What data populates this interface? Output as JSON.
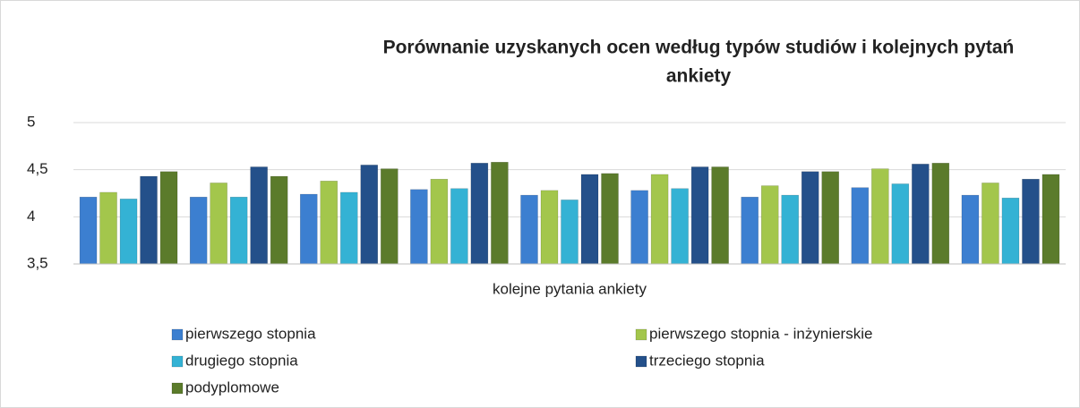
{
  "chart_data": {
    "type": "bar",
    "title": [
      "Porównanie uzyskanych ocen według typów studiów i kolejnych pytań",
      "ankiety"
    ],
    "x_label": "kolejne pytania ankiety",
    "categories": [
      null,
      null,
      null,
      null,
      null,
      null,
      null,
      null,
      null
    ],
    "series": [
      {
        "name": "pierwszego stopnia",
        "color": "#3c7fd0",
        "values": [
          4.21,
          4.21,
          4.24,
          4.29,
          4.23,
          4.28,
          4.21,
          4.31,
          4.23
        ]
      },
      {
        "name": "pierwszego stopnia - inżynierskie",
        "color": "#a3c64c",
        "values": [
          4.26,
          4.36,
          4.38,
          4.4,
          4.28,
          4.45,
          4.33,
          4.51,
          4.36
        ]
      },
      {
        "name": "drugiego stopnia",
        "color": "#34b2d4",
        "values": [
          4.19,
          4.21,
          4.26,
          4.3,
          4.18,
          4.3,
          4.23,
          4.35,
          4.2
        ]
      },
      {
        "name": "trzeciego stopnia",
        "color": "#24508a",
        "values": [
          4.43,
          4.53,
          4.55,
          4.57,
          4.45,
          4.53,
          4.48,
          4.56,
          4.4
        ]
      },
      {
        "name": "podyplomowe",
        "color": "#5b7b2b",
        "values": [
          4.48,
          4.43,
          4.51,
          4.58,
          4.46,
          4.53,
          4.48,
          4.57,
          4.45
        ]
      }
    ],
    "ylim": [
      3.5,
      5
    ],
    "yticks": [
      {
        "value": 3.5,
        "label": "3,5"
      },
      4,
      {
        "value": 4.5,
        "label": "4,5"
      },
      5
    ],
    "grid": true,
    "legend": "bottom"
  }
}
